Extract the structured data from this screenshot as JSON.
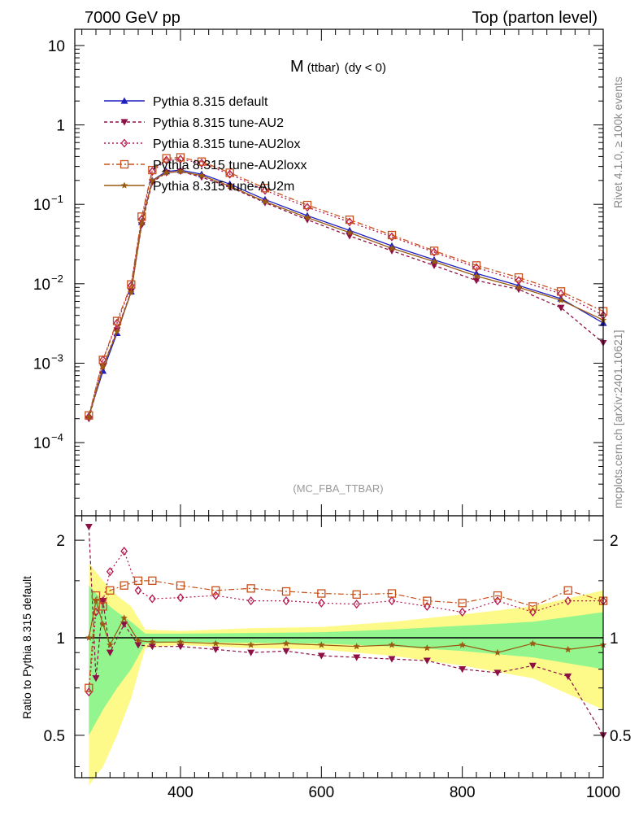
{
  "header": {
    "left": "7000 GeV pp",
    "right": "Top (parton level)"
  },
  "side": {
    "rivet": "Rivet 4.1.0, ≥ 100k events",
    "mcplots": "mcplots.cern.ch [arXiv:2401.10621]"
  },
  "chart_data": [
    {
      "type": "line",
      "title_main": "M",
      "title_sub": "(ttbar)",
      "title_rest": "(dy < 0)",
      "watermark": "(MC_FBA_TTBAR)",
      "yscale": "log",
      "xlim": [
        250,
        1000
      ],
      "ylim": [
        1.2e-05,
        16
      ],
      "yticks": [
        {
          "v": 0.0001,
          "base": "10",
          "exp": "−4"
        },
        {
          "v": 0.001,
          "base": "10",
          "exp": "−3"
        },
        {
          "v": 0.01,
          "base": "10",
          "exp": "−2"
        },
        {
          "v": 0.1,
          "base": "10",
          "exp": "−1"
        },
        {
          "v": 1,
          "base": "1",
          "exp": ""
        },
        {
          "v": 10,
          "base": "10",
          "exp": ""
        }
      ],
      "legend_position": "top-left",
      "series": [
        {
          "name": "Pythia 8.315 default",
          "color": "#1f1fbf",
          "marker": "triangle-up",
          "dash": "",
          "x": [
            270,
            290,
            310,
            330,
            345,
            360,
            380,
            400,
            430,
            470,
            520,
            580,
            640,
            700,
            760,
            820,
            880,
            940,
            1000
          ],
          "values": [
            0.00022,
            0.0008,
            0.0024,
            0.008,
            0.06,
            0.2,
            0.26,
            0.27,
            0.24,
            0.18,
            0.115,
            0.072,
            0.047,
            0.03,
            0.02,
            0.0135,
            0.0095,
            0.0065,
            0.0032
          ]
        },
        {
          "name": "Pythia 8.315 tune-AU2",
          "color": "#8c1045",
          "marker": "triangle-down",
          "dash": "4,3",
          "x": [
            270,
            290,
            310,
            330,
            345,
            360,
            380,
            400,
            430,
            470,
            520,
            580,
            640,
            700,
            760,
            820,
            880,
            940,
            1000
          ],
          "values": [
            0.0002,
            0.0009,
            0.0026,
            0.008,
            0.055,
            0.19,
            0.25,
            0.26,
            0.22,
            0.165,
            0.105,
            0.064,
            0.04,
            0.026,
            0.017,
            0.011,
            0.0085,
            0.005,
            0.0018
          ]
        },
        {
          "name": "Pythia 8.315 tune-AU2lox",
          "color": "#b5174e",
          "marker": "diamond-open",
          "dash": "2,3",
          "x": [
            270,
            290,
            310,
            330,
            345,
            360,
            380,
            400,
            430,
            470,
            520,
            580,
            640,
            700,
            760,
            820,
            880,
            940,
            1000
          ],
          "values": [
            0.00021,
            0.0011,
            0.0032,
            0.0095,
            0.065,
            0.26,
            0.36,
            0.37,
            0.33,
            0.24,
            0.15,
            0.092,
            0.06,
            0.039,
            0.025,
            0.016,
            0.011,
            0.0075,
            0.004
          ]
        },
        {
          "name": "Pythia 8.315 tune-AU2loxx",
          "color": "#c8501a",
          "marker": "square-open",
          "dash": "7,3,2,3",
          "x": [
            270,
            290,
            310,
            330,
            345,
            360,
            380,
            400,
            430,
            470,
            520,
            580,
            640,
            700,
            760,
            820,
            880,
            940,
            1000
          ],
          "values": [
            0.00022,
            0.0011,
            0.0034,
            0.0098,
            0.07,
            0.27,
            0.38,
            0.39,
            0.345,
            0.25,
            0.16,
            0.098,
            0.064,
            0.041,
            0.026,
            0.017,
            0.012,
            0.008,
            0.0045
          ]
        },
        {
          "name": "Pythia 8.315 tune-AU2m",
          "color": "#9a5a12",
          "marker": "star",
          "dash": "",
          "x": [
            270,
            290,
            310,
            330,
            345,
            360,
            380,
            400,
            430,
            470,
            520,
            580,
            640,
            700,
            760,
            820,
            880,
            940,
            1000
          ],
          "values": [
            0.00021,
            0.0009,
            0.0025,
            0.0078,
            0.058,
            0.2,
            0.25,
            0.26,
            0.23,
            0.17,
            0.108,
            0.068,
            0.044,
            0.028,
            0.019,
            0.0125,
            0.009,
            0.0062,
            0.0035
          ]
        }
      ]
    },
    {
      "type": "line",
      "ylabel": "Ratio to Pythia 8.315 default",
      "xlim": [
        250,
        1000
      ],
      "ylim": [
        0.37,
        2.38
      ],
      "xticks": [
        400,
        600,
        800,
        1000
      ],
      "yticks": [
        0.5,
        1,
        2
      ],
      "bands": {
        "x": [
          270,
          290,
          310,
          330,
          350,
          400,
          500,
          600,
          700,
          800,
          900,
          1000
        ],
        "yellow_lo": [
          0.35,
          0.4,
          0.5,
          0.65,
          0.93,
          0.95,
          0.93,
          0.92,
          0.88,
          0.82,
          0.75,
          0.6
        ],
        "yellow_hi": [
          1.7,
          1.5,
          1.35,
          1.25,
          1.06,
          1.05,
          1.07,
          1.08,
          1.12,
          1.18,
          1.25,
          1.4
        ],
        "green_lo": [
          0.5,
          0.6,
          0.7,
          0.8,
          0.96,
          0.97,
          0.965,
          0.96,
          0.94,
          0.91,
          0.87,
          0.8
        ],
        "green_hi": [
          1.45,
          1.3,
          1.2,
          1.12,
          1.03,
          1.03,
          1.035,
          1.04,
          1.06,
          1.09,
          1.12,
          1.2
        ]
      },
      "series": [
        {
          "name": "Pythia 8.315 default",
          "x": [
            250,
            1000
          ],
          "values": [
            1,
            1
          ]
        },
        {
          "name": "Pythia 8.315 tune-AU2",
          "x": [
            270,
            280,
            290,
            300,
            320,
            340,
            360,
            400,
            450,
            500,
            550,
            600,
            650,
            700,
            750,
            800,
            850,
            900,
            950,
            1000
          ],
          "values": [
            2.2,
            0.75,
            1.3,
            0.9,
            1.1,
            0.95,
            0.94,
            0.94,
            0.92,
            0.9,
            0.91,
            0.88,
            0.87,
            0.86,
            0.85,
            0.8,
            0.78,
            0.82,
            0.76,
            0.5
          ]
        },
        {
          "name": "Pythia 8.315 tune-AU2lox",
          "x": [
            270,
            280,
            290,
            300,
            320,
            340,
            360,
            400,
            450,
            500,
            550,
            600,
            650,
            700,
            750,
            800,
            850,
            900,
            950,
            1000
          ],
          "values": [
            0.68,
            1.2,
            1.3,
            1.6,
            1.85,
            1.4,
            1.32,
            1.33,
            1.35,
            1.3,
            1.3,
            1.28,
            1.27,
            1.3,
            1.25,
            1.2,
            1.3,
            1.2,
            1.3,
            1.3
          ]
        },
        {
          "name": "Pythia 8.315 tune-AU2loxx",
          "x": [
            270,
            280,
            290,
            300,
            320,
            340,
            360,
            400,
            450,
            500,
            550,
            600,
            650,
            700,
            750,
            800,
            850,
            900,
            950,
            1000
          ],
          "values": [
            0.7,
            1.35,
            1.25,
            1.4,
            1.45,
            1.5,
            1.5,
            1.45,
            1.4,
            1.42,
            1.39,
            1.37,
            1.36,
            1.37,
            1.3,
            1.28,
            1.35,
            1.25,
            1.4,
            1.3
          ]
        },
        {
          "name": "Pythia 8.315 tune-AU2m",
          "x": [
            270,
            280,
            290,
            300,
            320,
            340,
            360,
            400,
            450,
            500,
            550,
            600,
            650,
            700,
            750,
            800,
            850,
            900,
            950,
            1000
          ],
          "values": [
            1.0,
            1.3,
            1.1,
            0.95,
            1.15,
            0.98,
            0.97,
            0.97,
            0.96,
            0.95,
            0.96,
            0.95,
            0.94,
            0.95,
            0.93,
            0.95,
            0.9,
            0.96,
            0.92,
            0.95
          ]
        }
      ]
    }
  ]
}
